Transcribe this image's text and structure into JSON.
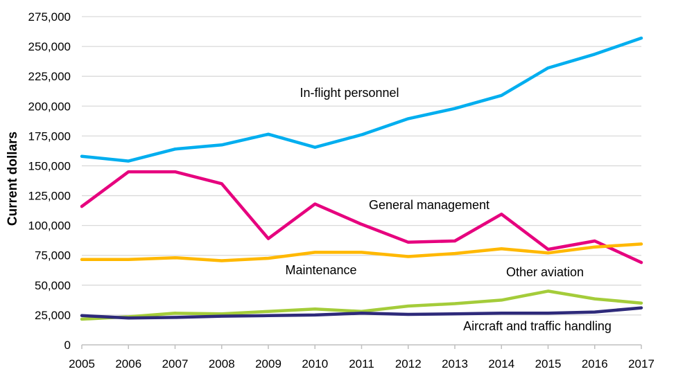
{
  "chart_data": {
    "type": "line",
    "ylabel": "Current dollars",
    "xlabel": "",
    "ylim": [
      0,
      275000
    ],
    "ytick_step": 25000,
    "yticks": [
      "0",
      "25,000",
      "50,000",
      "75,000",
      "100,000",
      "125,000",
      "150,000",
      "175,000",
      "200,000",
      "225,000",
      "250,000",
      "275,000"
    ],
    "grid": true,
    "legend": "inline labels",
    "categories": [
      "2005",
      "2006",
      "2007",
      "2008",
      "2009",
      "2010",
      "2011",
      "2012",
      "2013",
      "2014",
      "2015",
      "2016",
      "2017"
    ],
    "series": [
      {
        "name": "In-flight personnel",
        "color": "#00aeef",
        "values": [
          158000,
          154000,
          164000,
          167500,
          176500,
          165500,
          176000,
          189500,
          198000,
          209000,
          232000,
          243500,
          257000
        ]
      },
      {
        "name": "General management",
        "color": "#e6007e",
        "values": [
          116000,
          145000,
          145000,
          135000,
          89000,
          118000,
          101000,
          86000,
          87000,
          109500,
          80000,
          87000,
          69000
        ]
      },
      {
        "name": "Maintenance",
        "color": "#ffb800",
        "values": [
          71500,
          71500,
          73000,
          70500,
          72500,
          77500,
          77500,
          74000,
          76500,
          80500,
          77000,
          82000,
          84500
        ]
      },
      {
        "name": "Other aviation",
        "color": "#a4cc3a",
        "values": [
          21500,
          23500,
          26500,
          26000,
          28000,
          30000,
          28000,
          32500,
          34500,
          37500,
          45000,
          38500,
          35000
        ]
      },
      {
        "name": "Aircraft and traffic handling",
        "color": "#2e2a7a",
        "values": [
          24500,
          22500,
          23000,
          24000,
          24500,
          25000,
          26500,
          25500,
          26000,
          26500,
          26500,
          27500,
          31000
        ]
      }
    ]
  }
}
